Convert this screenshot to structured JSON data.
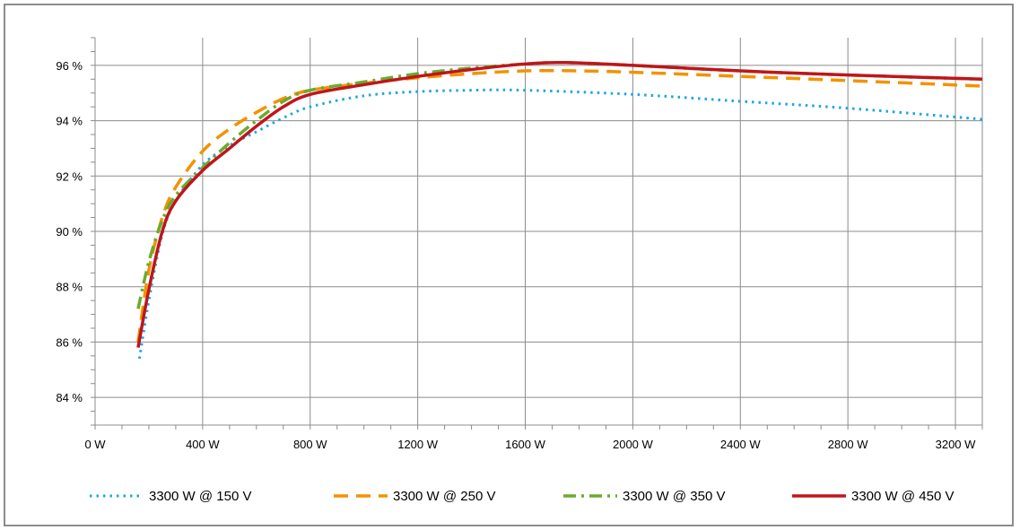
{
  "chart_data": {
    "type": "line",
    "title": "",
    "xlabel": "",
    "ylabel": "",
    "xlim": [
      0,
      3300
    ],
    "ylim": [
      83,
      97
    ],
    "grid": true,
    "legend_position": "bottom",
    "x_ticks": [
      {
        "value": 0,
        "label": "0 W"
      },
      {
        "value": 400,
        "label": "400 W"
      },
      {
        "value": 800,
        "label": "800 W"
      },
      {
        "value": 1200,
        "label": "1200 W"
      },
      {
        "value": 1600,
        "label": "1600 W"
      },
      {
        "value": 2000,
        "label": "2000 W"
      },
      {
        "value": 2400,
        "label": "2400 W"
      },
      {
        "value": 2800,
        "label": "2800 W"
      },
      {
        "value": 3200,
        "label": "3200 W"
      }
    ],
    "y_ticks": [
      {
        "value": 84,
        "label": "84 %"
      },
      {
        "value": 86,
        "label": "86 %"
      },
      {
        "value": 88,
        "label": "88 %"
      },
      {
        "value": 90,
        "label": "90 %"
      },
      {
        "value": 92,
        "label": "92 %"
      },
      {
        "value": 94,
        "label": "94 %"
      },
      {
        "value": 96,
        "label": "96 %"
      }
    ],
    "series": [
      {
        "name": "3300 W @ 150 V",
        "color": "#1ea7e1",
        "style": "dotted",
        "x": [
          165,
          200,
          250,
          300,
          400,
          500,
          600,
          700,
          800,
          1000,
          1200,
          1400,
          1600,
          2000,
          2400,
          2800,
          3300
        ],
        "y": [
          85.4,
          87.5,
          89.9,
          91.1,
          92.4,
          93.1,
          93.6,
          94.1,
          94.5,
          94.9,
          95.05,
          95.1,
          95.1,
          94.95,
          94.7,
          94.45,
          94.05
        ]
      },
      {
        "name": "3300 W @ 250 V",
        "color": "#f39200",
        "style": "dashed",
        "x": [
          160,
          200,
          250,
          300,
          400,
          500,
          600,
          700,
          800,
          1000,
          1200,
          1400,
          1600,
          1800,
          2000,
          2400,
          2800,
          3300
        ],
        "y": [
          86.0,
          88.6,
          90.5,
          91.6,
          92.9,
          93.7,
          94.3,
          94.8,
          95.1,
          95.35,
          95.55,
          95.7,
          95.8,
          95.8,
          95.75,
          95.6,
          95.45,
          95.25
        ]
      },
      {
        "name": "3300 W @ 350 V",
        "color": "#6aab2e",
        "style": "dashdot",
        "x": [
          160,
          200,
          250,
          300,
          400,
          500,
          600,
          700,
          800,
          1000,
          1200,
          1400,
          1600,
          1750,
          2000,
          2400,
          2800,
          3300
        ],
        "y": [
          87.2,
          88.9,
          90.4,
          91.3,
          92.3,
          93.2,
          94.0,
          94.7,
          95.1,
          95.4,
          95.7,
          95.9,
          96.05,
          96.1,
          96.0,
          95.8,
          95.65,
          95.5
        ]
      },
      {
        "name": "3300 W @ 450 V",
        "color": "#c0151b",
        "style": "solid",
        "x": [
          160,
          200,
          250,
          300,
          400,
          500,
          600,
          700,
          800,
          1000,
          1200,
          1400,
          1600,
          1750,
          2000,
          2400,
          2800,
          3300
        ],
        "y": [
          85.8,
          87.9,
          90.0,
          91.1,
          92.2,
          93.0,
          93.8,
          94.5,
          94.95,
          95.3,
          95.6,
          95.85,
          96.05,
          96.1,
          96.0,
          95.8,
          95.65,
          95.5
        ]
      }
    ]
  }
}
